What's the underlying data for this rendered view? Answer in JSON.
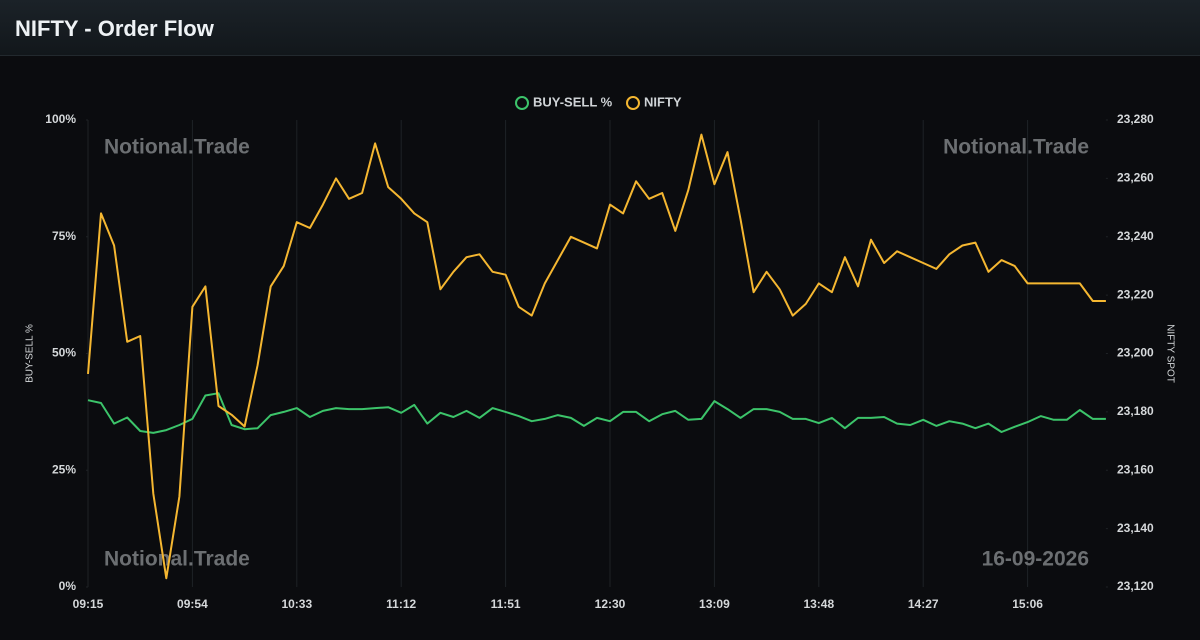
{
  "header": {
    "title": "NIFTY - Order Flow"
  },
  "chart_data": {
    "type": "line",
    "categories": [
      "09:15",
      null,
      null,
      null,
      null,
      null,
      null,
      null,
      "09:54",
      null,
      null,
      null,
      null,
      null,
      null,
      null,
      "10:33",
      null,
      null,
      null,
      null,
      null,
      null,
      null,
      "11:12",
      null,
      null,
      null,
      null,
      null,
      null,
      null,
      "11:51",
      null,
      null,
      null,
      null,
      null,
      null,
      null,
      "12:30",
      null,
      null,
      null,
      null,
      null,
      null,
      null,
      "13:09",
      null,
      null,
      null,
      null,
      null,
      null,
      null,
      "13:48",
      null,
      null,
      null,
      null,
      null,
      null,
      null,
      "14:27",
      null,
      null,
      null,
      null,
      null,
      null,
      null,
      "15:06",
      null,
      null,
      null,
      null,
      null,
      null
    ],
    "series": [
      {
        "name": "BUY-SELL %",
        "color": "#3cc46a",
        "axis": "y",
        "values": [
          40,
          39.4,
          35,
          36.3,
          33.4,
          33,
          33.6,
          34.7,
          36,
          41,
          41.5,
          34.7,
          33.8,
          34,
          36.8,
          37.5,
          38.3,
          36.4,
          37.7,
          38.3,
          38.1,
          38.1,
          38.3,
          38.5,
          37.3,
          39,
          35,
          37.3,
          36.4,
          37.7,
          36.2,
          38.3,
          37.5,
          36.6,
          35.5,
          36,
          36.8,
          36.2,
          34.5,
          36.2,
          35.5,
          37.5,
          37.5,
          35.5,
          37,
          37.7,
          35.8,
          36,
          39.8,
          38.1,
          36.2,
          38.1,
          38.1,
          37.5,
          36,
          36,
          35.1,
          36.2,
          34,
          36.2,
          36.2,
          36.4,
          35,
          34.7,
          35.8,
          34.5,
          35.5,
          35,
          34,
          35,
          33.2,
          34.3,
          35.3,
          36.6,
          35.8,
          35.8,
          37.9,
          36,
          36
        ]
      },
      {
        "name": "NIFTY",
        "color": "#f5b731",
        "axis": "y2",
        "values": [
          23193,
          23248,
          23237,
          23204,
          23206,
          23152,
          23123,
          23151,
          23216,
          23223,
          23182,
          23179,
          23175,
          23196,
          23223,
          23230,
          23245,
          23243,
          23251,
          23260,
          23253,
          23255,
          23272,
          23257,
          23253,
          23248,
          23245,
          23222,
          23228,
          23233,
          23234,
          23228,
          23227,
          23216,
          23213,
          23224,
          23232,
          23240,
          23238,
          23236,
          23251,
          23248,
          23259,
          23253,
          23255,
          23242,
          23256,
          23275,
          23258,
          23269,
          23246,
          23221,
          23228,
          23222,
          23213,
          23217,
          23224,
          23221,
          23233,
          23223,
          23239,
          23231,
          23235,
          23233,
          23231,
          23229,
          23234,
          23237,
          23238,
          23228,
          23232,
          23230,
          23224,
          23224,
          23224,
          23224,
          23224,
          23218,
          23218
        ]
      }
    ],
    "ylim": [
      0,
      100
    ],
    "yticks": [
      {
        "value": 0,
        "label": "0%"
      },
      {
        "value": 25,
        "label": "25%"
      },
      {
        "value": 50,
        "label": "50%"
      },
      {
        "value": 75,
        "label": "75%"
      },
      {
        "value": 100,
        "label": "100%"
      }
    ],
    "y2lim": [
      23120,
      23280
    ],
    "y2ticks": [
      {
        "value": 23120,
        "label": "23,120"
      },
      {
        "value": 23140,
        "label": "23,140"
      },
      {
        "value": 23160,
        "label": "23,160"
      },
      {
        "value": 23180,
        "label": "23,180"
      },
      {
        "value": 23200,
        "label": "23,200"
      },
      {
        "value": 23220,
        "label": "23,220"
      },
      {
        "value": 23240,
        "label": "23,240"
      },
      {
        "value": 23260,
        "label": "23,260"
      },
      {
        "value": 23280,
        "label": "23,280"
      }
    ],
    "ylabel": "BUY-SELL %",
    "y2label": "NIFTY SPOT",
    "grid": "x",
    "legend": "top",
    "annotations": [
      "Notional.Trade",
      "Notional.Trade",
      "Notional.Trade",
      "16-09-2026"
    ]
  }
}
